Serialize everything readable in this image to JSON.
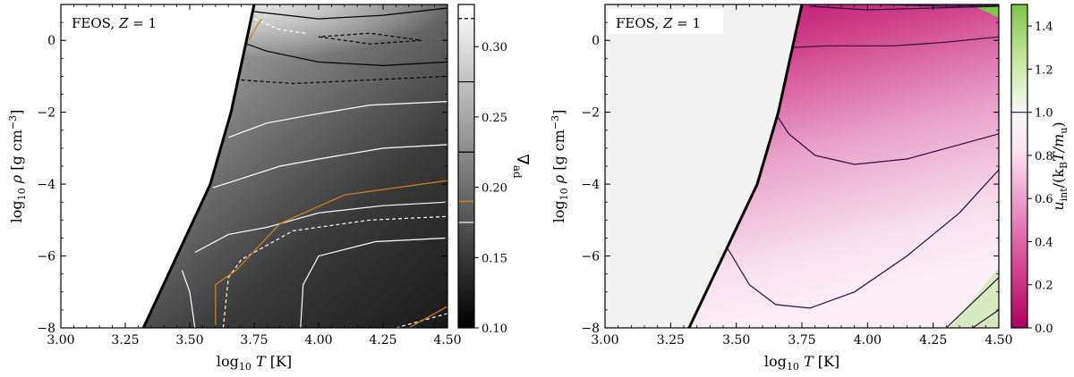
{
  "chart_data": [
    {
      "type": "heatmap",
      "id": "left",
      "annotation": {
        "prefix": "FEOS, ",
        "var": "Z",
        "suffix": " = 1"
      },
      "xlabel": {
        "prefix": "log",
        "sub": "10",
        "var": "T",
        "unit": " [K]"
      },
      "ylabel": {
        "prefix": "log",
        "sub": "10",
        "var": "ρ",
        "unit": " [g cm",
        "sup": "−3",
        "close": "]"
      },
      "xlim": [
        3.0,
        4.5
      ],
      "ylim": [
        -8,
        1
      ],
      "x_ticks": [
        3.0,
        3.25,
        3.5,
        3.75,
        4.0,
        4.25,
        4.5
      ],
      "x_tick_labels": [
        "3.00",
        "3.25",
        "3.50",
        "3.75",
        "4.00",
        "4.25",
        "4.50"
      ],
      "y_ticks": [
        0,
        -2,
        -4,
        -6,
        -8
      ],
      "y_tick_labels": [
        "0",
        "−2",
        "−4",
        "−6",
        "−8"
      ],
      "boundary": [
        [
          3.32,
          -8
        ],
        [
          3.45,
          -6
        ],
        [
          3.58,
          -4
        ],
        [
          3.66,
          -2
        ],
        [
          3.72,
          0
        ],
        [
          3.75,
          1
        ]
      ],
      "colorbar": {
        "label": "∇",
        "label_sub": "ad",
        "range": [
          0.1,
          0.33
        ],
        "ticks": [
          0.1,
          0.15,
          0.2,
          0.25,
          0.3
        ],
        "tick_labels": [
          "0.10",
          "0.15",
          "0.20",
          "0.25",
          "0.30"
        ],
        "reference_lines": [
          0.32,
          0.275,
          0.225,
          0.175
        ],
        "colors": [
          "#000000",
          "#ffffff"
        ]
      },
      "contours": [
        {
          "color": "#ffffff",
          "dash": "",
          "points": [
            [
              3.52,
              -8
            ],
            [
              3.5,
              -7
            ],
            [
              3.47,
              -6.4
            ]
          ]
        },
        {
          "color": "#ffffff",
          "dash": "",
          "points": [
            [
              3.52,
              -5.9
            ],
            [
              3.65,
              -5.4
            ],
            [
              3.8,
              -5.2
            ],
            [
              4.0,
              -4.8
            ],
            [
              4.25,
              -4.6
            ],
            [
              4.5,
              -4.5
            ]
          ]
        },
        {
          "color": "#ffffff",
          "dash": "",
          "points": [
            [
              3.59,
              -4.1
            ],
            [
              3.72,
              -3.8
            ],
            [
              3.85,
              -3.5
            ],
            [
              4.0,
              -3.3
            ],
            [
              4.25,
              -3.0
            ],
            [
              4.5,
              -2.9
            ]
          ]
        },
        {
          "color": "#ffffff",
          "dash": "",
          "points": [
            [
              3.65,
              -2.7
            ],
            [
              3.8,
              -2.3
            ],
            [
              3.95,
              -2.1
            ],
            [
              4.2,
              -1.8
            ],
            [
              4.5,
              -1.7
            ]
          ]
        },
        {
          "color": "#ffffff",
          "dash": "",
          "points": [
            [
              3.93,
              -8
            ],
            [
              3.94,
              -6.8
            ],
            [
              4.0,
              -6.0
            ],
            [
              4.22,
              -5.6
            ],
            [
              4.5,
              -5.5
            ]
          ]
        },
        {
          "color": "#ffffff",
          "dash": "4,3",
          "points": [
            [
              3.63,
              -8
            ],
            [
              3.65,
              -6.6
            ],
            [
              3.7,
              -6.1
            ],
            [
              3.9,
              -5.3
            ],
            [
              4.2,
              -5.0
            ],
            [
              4.5,
              -4.9
            ]
          ]
        },
        {
          "color": "#ffffff",
          "dash": "4,3",
          "points": [
            [
              4.3,
              -8
            ],
            [
              4.4,
              -7.8
            ],
            [
              4.5,
              -7.6
            ]
          ]
        },
        {
          "color": "#ffffff",
          "dash": "4,3",
          "points": [
            [
              3.75,
              0.6
            ],
            [
              3.85,
              0.3
            ],
            [
              3.95,
              0.2
            ]
          ]
        },
        {
          "color": "#d7821c",
          "dash": "",
          "points": [
            [
              3.6,
              -8
            ],
            [
              3.6,
              -6.8
            ],
            [
              3.68,
              -6.4
            ],
            [
              3.85,
              -5.1
            ],
            [
              4.1,
              -4.3
            ],
            [
              4.5,
              -3.9
            ]
          ]
        },
        {
          "color": "#d7821c",
          "dash": "",
          "points": [
            [
              4.35,
              -8
            ],
            [
              4.5,
              -7.4
            ]
          ]
        },
        {
          "color": "#d7821c",
          "dash": "",
          "points": [
            [
              3.73,
              0.0
            ],
            [
              3.76,
              0.4
            ],
            [
              3.78,
              0.6
            ]
          ]
        },
        {
          "color": "#000000",
          "dash": "",
          "points": [
            [
              3.72,
              -0.1
            ],
            [
              3.8,
              -0.3
            ],
            [
              4.0,
              -0.6
            ],
            [
              4.25,
              -0.7
            ],
            [
              4.5,
              -0.6
            ]
          ]
        },
        {
          "color": "#000000",
          "dash": "",
          "points": [
            [
              3.75,
              0.8
            ],
            [
              4.0,
              0.6
            ],
            [
              4.25,
              0.7
            ],
            [
              4.5,
              0.9
            ]
          ]
        },
        {
          "color": "#000000",
          "dash": "4,3",
          "points": [
            [
              3.7,
              -1.1
            ],
            [
              3.9,
              -1.2
            ],
            [
              4.2,
              -1.1
            ],
            [
              4.5,
              -1.0
            ]
          ]
        },
        {
          "color": "#000000",
          "dash": "4,3",
          "points": [
            [
              4.0,
              0.1
            ],
            [
              4.2,
              -0.1
            ],
            [
              4.4,
              0.0
            ],
            [
              4.2,
              0.2
            ],
            [
              4.0,
              0.1
            ]
          ]
        }
      ]
    },
    {
      "type": "heatmap",
      "id": "right",
      "annotation": {
        "prefix": "FEOS, ",
        "var": "Z",
        "suffix": " = 1"
      },
      "xlabel": {
        "prefix": "log",
        "sub": "10",
        "var": "T",
        "unit": " [K]"
      },
      "ylabel": {
        "prefix": "log",
        "sub": "10",
        "var": "ρ",
        "unit": " [g cm",
        "sup": "−3",
        "close": "]"
      },
      "xlim": [
        3.0,
        4.5
      ],
      "ylim": [
        -8,
        1
      ],
      "x_ticks": [
        3.0,
        3.25,
        3.5,
        3.75,
        4.0,
        4.25,
        4.5
      ],
      "x_tick_labels": [
        "3.00",
        "3.25",
        "3.50",
        "3.75",
        "4.00",
        "4.25",
        "4.50"
      ],
      "y_ticks": [
        0,
        -2,
        -4,
        -6,
        -8
      ],
      "y_tick_labels": [
        "0",
        "−2",
        "−4",
        "−6",
        "−8"
      ],
      "boundary": [
        [
          3.32,
          -8
        ],
        [
          3.45,
          -6
        ],
        [
          3.58,
          -4
        ],
        [
          3.66,
          -2
        ],
        [
          3.72,
          0
        ],
        [
          3.75,
          1
        ]
      ],
      "colorbar": {
        "label": "u",
        "label_sub": "int",
        "label_rest": "/(k",
        "label_sub2": "B",
        "label_rest2": "T/m",
        "label_sub3": "u",
        "label_close": ")",
        "range": [
          0.0,
          1.5
        ],
        "ticks": [
          0.0,
          0.2,
          0.4,
          0.6,
          0.8,
          1.0,
          1.2,
          1.4
        ],
        "tick_labels": [
          "0.0",
          "0.2",
          "0.4",
          "0.6",
          "0.8",
          "1.0",
          "1.2",
          "1.4"
        ],
        "reference_lines": [
          1.0
        ],
        "colors": [
          "#b0005d",
          "#d64a95",
          "#eba0cc",
          "#fbe4f1",
          "#f7f7f7",
          "#c5e79a",
          "#7dc44a"
        ]
      },
      "contours": [
        {
          "color": "#2b0b3f",
          "dash": "",
          "points": [
            [
              3.7,
              -0.2
            ],
            [
              3.85,
              -0.15
            ],
            [
              4.1,
              -0.15
            ],
            [
              4.3,
              -0.05
            ],
            [
              4.5,
              0.1
            ]
          ]
        },
        {
          "color": "#2b0b3f",
          "dash": "",
          "points": [
            [
              3.62,
              -1.7
            ],
            [
              3.7,
              -2.6
            ],
            [
              3.8,
              -3.2
            ],
            [
              3.95,
              -3.45
            ],
            [
              4.15,
              -3.3
            ],
            [
              4.35,
              -2.9
            ],
            [
              4.5,
              -2.6
            ]
          ]
        },
        {
          "color": "#2b0b3f",
          "dash": "",
          "points": [
            [
              3.46,
              -5.7
            ],
            [
              3.55,
              -6.8
            ],
            [
              3.65,
              -7.35
            ],
            [
              3.78,
              -7.45
            ],
            [
              3.95,
              -7.0
            ],
            [
              4.15,
              -6.0
            ],
            [
              4.35,
              -4.8
            ],
            [
              4.5,
              -3.6
            ]
          ]
        },
        {
          "color": "#2b0b3f",
          "dash": "",
          "points": [
            [
              4.3,
              -8
            ],
            [
              4.4,
              -7.3
            ],
            [
              4.5,
              -6.6
            ]
          ]
        },
        {
          "color": "#2b0b3f",
          "dash": "",
          "points": [
            [
              4.4,
              -8
            ],
            [
              4.5,
              -7.5
            ]
          ]
        },
        {
          "color": "#2b0b3f",
          "dash": "",
          "points": [
            [
              3.78,
              0.95
            ],
            [
              4.0,
              0.85
            ],
            [
              4.25,
              0.9
            ],
            [
              4.5,
              0.95
            ]
          ]
        },
        {
          "color": "#2b0b3f",
          "dash": "",
          "points": [
            [
              4.05,
              1.0
            ],
            [
              4.3,
              0.95
            ],
            [
              4.5,
              0.98
            ]
          ]
        }
      ]
    }
  ]
}
